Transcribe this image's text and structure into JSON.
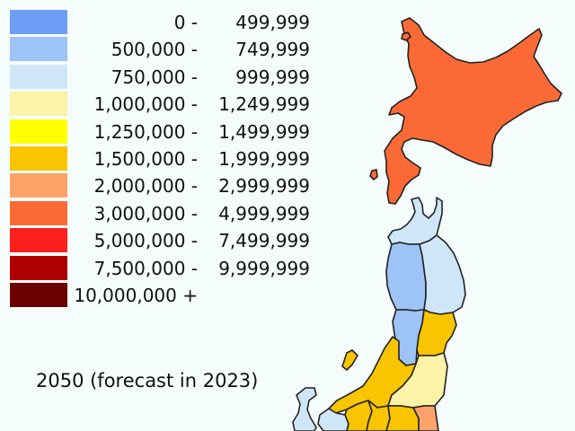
{
  "legend": {
    "rows": [
      {
        "from": "0 -",
        "to": "499,999",
        "color": "#6f9ef6"
      },
      {
        "from": "500,000 -",
        "to": "749,999",
        "color": "#9ec3f6"
      },
      {
        "from": "750,000 -",
        "to": "999,999",
        "color": "#cfe6f8"
      },
      {
        "from": "1,000,000 -",
        "to": "1,249,999",
        "color": "#fbf3a6"
      },
      {
        "from": "1,250,000 -",
        "to": "1,499,999",
        "color": "#ffff00"
      },
      {
        "from": "1,500,000 -",
        "to": "1,999,999",
        "color": "#f9c400"
      },
      {
        "from": "2,000,000 -",
        "to": "2,999,999",
        "color": "#fca36a"
      },
      {
        "from": "3,000,000 -",
        "to": "4,999,999",
        "color": "#fb6a36"
      },
      {
        "from": "5,000,000 -",
        "to": "7,499,999",
        "color": "#fe1e1e"
      },
      {
        "from": "7,500,000 -",
        "to": "9,999,999",
        "color": "#ae0000"
      },
      {
        "from": "10,000,000 +",
        "to": "",
        "color": "#6a0000"
      }
    ]
  },
  "caption": "2050 (forecast in 2023)",
  "background": "#f5fdfc",
  "regions": [
    {
      "name": "Hokkaido",
      "class_index": 7
    },
    {
      "name": "Aomori",
      "class_index": 2
    },
    {
      "name": "Akita",
      "class_index": 1
    },
    {
      "name": "Iwate",
      "class_index": 2
    },
    {
      "name": "Yamagata",
      "class_index": 1
    },
    {
      "name": "Miyagi",
      "class_index": 5
    },
    {
      "name": "Niigata",
      "class_index": 5
    },
    {
      "name": "Fukushima",
      "class_index": 3
    },
    {
      "name": "Toyama",
      "class_index": 2
    },
    {
      "name": "Ishikawa",
      "class_index": 2
    },
    {
      "name": "Nagano",
      "class_index": 5
    },
    {
      "name": "Gunma",
      "class_index": 5
    },
    {
      "name": "Tochigi",
      "class_index": 5
    },
    {
      "name": "Ibaraki",
      "class_index": 6
    },
    {
      "name": "Sado",
      "class_index": 5
    }
  ]
}
